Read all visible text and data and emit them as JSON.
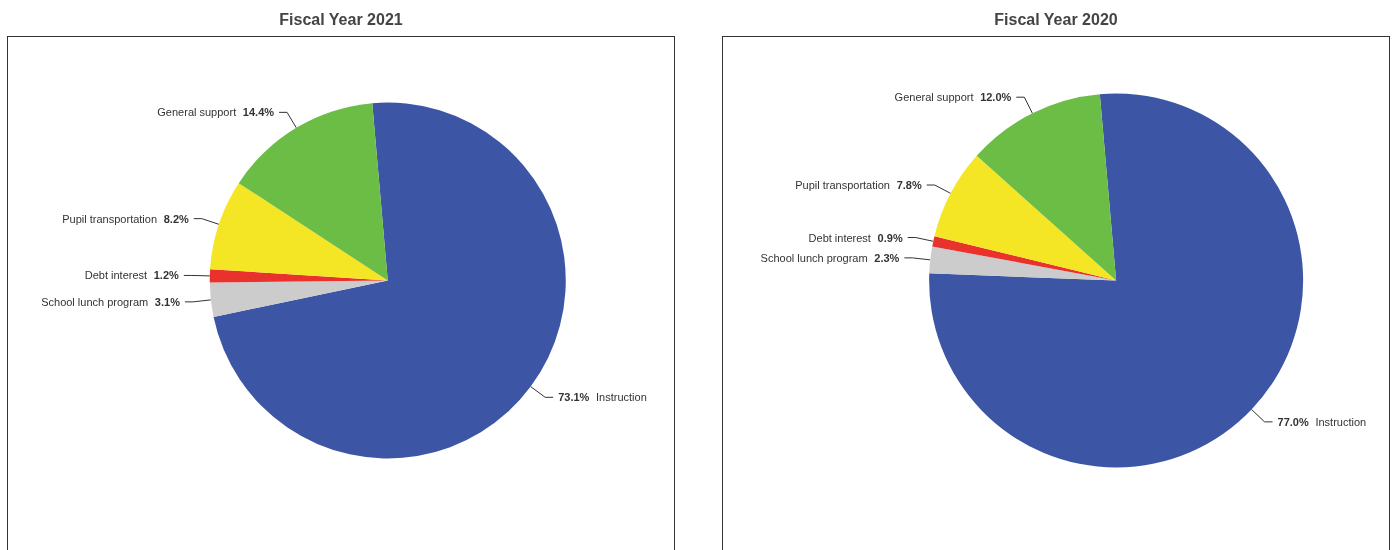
{
  "chart_data": [
    {
      "type": "pie",
      "title": "Fiscal Year 2021",
      "categories": [
        "Instruction",
        "School lunch program",
        "Debt interest",
        "Pupil transportation",
        "General support"
      ],
      "values": [
        73.1,
        3.1,
        1.2,
        8.2,
        14.4
      ],
      "value_labels": [
        "73.1%",
        "3.1%",
        "1.2%",
        "8.2%",
        "14.4%"
      ],
      "colors": [
        "#3d55a5",
        "#cccccc",
        "#e8322b",
        "#f5e625",
        "#6bbd45"
      ]
    },
    {
      "type": "pie",
      "title": "Fiscal Year 2020",
      "categories": [
        "Instruction",
        "School lunch program",
        "Debt interest",
        "Pupil transportation",
        "General support"
      ],
      "values": [
        77.0,
        2.3,
        0.9,
        7.8,
        12.0
      ],
      "value_labels": [
        "77.0%",
        "2.3%",
        "0.9%",
        "7.8%",
        "12.0%"
      ],
      "colors": [
        "#3d55a5",
        "#cccccc",
        "#e8322b",
        "#f5e625",
        "#6bbd45"
      ]
    }
  ]
}
